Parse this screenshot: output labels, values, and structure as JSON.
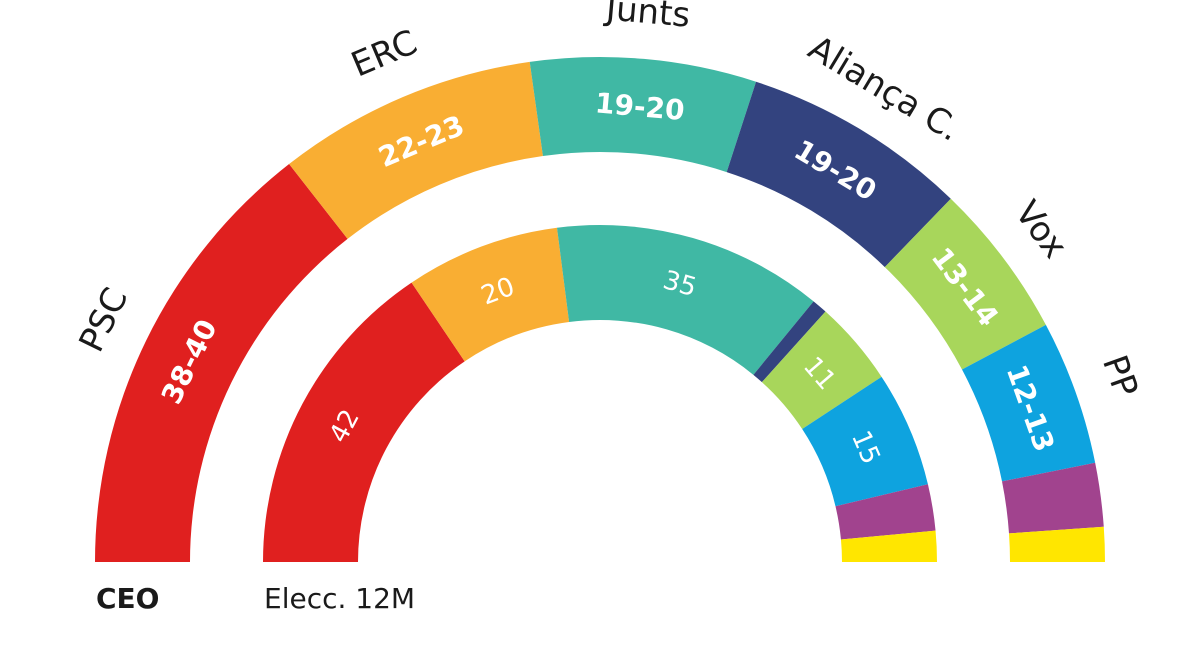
{
  "chart_data": {
    "type": "hemicycle",
    "total_seats": 135,
    "rings": [
      {
        "name": "CEO",
        "segments": [
          {
            "party": "PSC",
            "label": "38-40",
            "seats": 39,
            "color": "#e0201f"
          },
          {
            "party": "ERC",
            "label": "22-23",
            "seats": 22.5,
            "color": "#f9ae33"
          },
          {
            "party": "Junts",
            "label": "19-20",
            "seats": 19.5,
            "color": "#40b8a4"
          },
          {
            "party": "Aliança C.",
            "label": "19-20",
            "seats": 19.5,
            "color": "#33437f"
          },
          {
            "party": "Vox",
            "label": "13-14",
            "seats": 13.5,
            "color": "#a8d65b"
          },
          {
            "party": "PP",
            "label": "12-13",
            "seats": 12.5,
            "color": "#0ea3df"
          },
          {
            "party": "",
            "label": "",
            "seats": 5.5,
            "color": "#a1438e"
          },
          {
            "party": "",
            "label": "",
            "seats": 3,
            "color": "#ffe600"
          }
        ]
      },
      {
        "name": "Elecc. 12M",
        "segments": [
          {
            "party": "PSC",
            "label": "42",
            "seats": 42,
            "color": "#e0201f"
          },
          {
            "party": "ERC",
            "label": "20",
            "seats": 20,
            "color": "#f9ae33"
          },
          {
            "party": "Junts",
            "label": "35",
            "seats": 35,
            "color": "#40b8a4"
          },
          {
            "party": "Aliança C.",
            "label": "",
            "seats": 2,
            "color": "#33437f"
          },
          {
            "party": "Vox",
            "label": "11",
            "seats": 11,
            "color": "#a8d65b"
          },
          {
            "party": "PP",
            "label": "15",
            "seats": 15,
            "color": "#0ea3df"
          },
          {
            "party": "",
            "label": "",
            "seats": 6,
            "color": "#a1438e"
          },
          {
            "party": "",
            "label": "",
            "seats": 4,
            "color": "#ffe600"
          }
        ]
      }
    ]
  }
}
